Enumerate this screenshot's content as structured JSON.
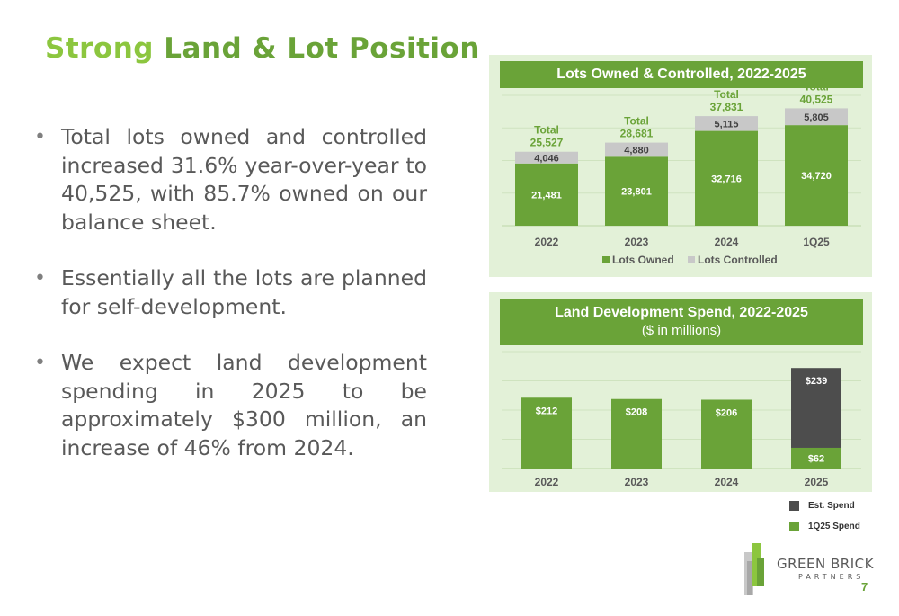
{
  "title": {
    "part1": "Strong",
    "part2": "Land & Lot Position"
  },
  "bullets": [
    "Total lots owned and controlled increased 31.6% year-over-year to 40,525, with 85.7% owned on our balance sheet.",
    "Essentially all the lots are planned for self-development.",
    "We expect land development spending in 2025 to be approximately $300 million, an increase of 46% from 2024."
  ],
  "bullet_symbol": "•",
  "colors": {
    "accent": "#6aa338",
    "light_green": "#8cc63f",
    "panel_bg": "#e3f1d8",
    "gray": "#c8c8c8",
    "dark_gray": "#4d4d4d"
  },
  "chart_data": [
    {
      "type": "bar",
      "stacked": true,
      "title": "Lots Owned & Controlled, 2022-2025",
      "categories": [
        "2022",
        "2023",
        "2024",
        "1Q25"
      ],
      "series": [
        {
          "name": "Lots Owned",
          "values": [
            21481,
            23801,
            32716,
            34720
          ],
          "labels": [
            "21,481",
            "23,801",
            "32,716",
            "34,720"
          ],
          "color": "#6aa338"
        },
        {
          "name": "Lots Controlled",
          "values": [
            4046,
            4880,
            5115,
            5805
          ],
          "labels": [
            "4,046",
            "4,880",
            "5,115",
            "5,805"
          ],
          "color": "#c8c8c8"
        }
      ],
      "total_prefix": "Total",
      "totals": [
        25527,
        28681,
        37831,
        40525
      ],
      "total_labels": [
        "25,527",
        "28,681",
        "37,831",
        "40,525"
      ],
      "ylim": [
        0,
        45000
      ],
      "grid": true,
      "legend": "bottom"
    },
    {
      "type": "bar",
      "stacked": true,
      "title": "Land Development Spend, 2022-2025",
      "subtitle": "($ in millions)",
      "categories": [
        "2022",
        "2023",
        "2024",
        "2025"
      ],
      "series": [
        {
          "name": "1Q25 Spend",
          "values": [
            212,
            208,
            206,
            62
          ],
          "labels": [
            "$212",
            "$208",
            "$206",
            "$62"
          ],
          "color": "#6aa338"
        },
        {
          "name": "Est. Spend",
          "values": [
            0,
            0,
            0,
            239
          ],
          "labels": [
            "",
            "",
            "",
            "$239"
          ],
          "color": "#4d4d4d"
        }
      ],
      "ylim": [
        0,
        350
      ],
      "grid": true,
      "legend": "bottom-right"
    }
  ],
  "logo": {
    "name": "GREEN BRICK",
    "sub": "PARTNERS"
  },
  "page_number": "7"
}
